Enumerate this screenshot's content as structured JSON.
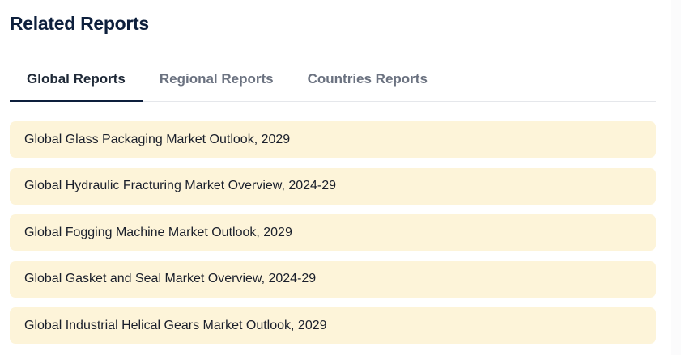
{
  "title": "Related Reports",
  "tabs": [
    {
      "label": "Global Reports",
      "active": true
    },
    {
      "label": "Regional Reports",
      "active": false
    },
    {
      "label": "Countries Reports",
      "active": false
    }
  ],
  "reports": [
    "Global Glass Packaging Market Outlook, 2029",
    "Global Hydraulic Fracturing Market Overview, 2024-29",
    "Global Fogging Machine Market Outlook, 2029",
    "Global Gasket and Seal Market Overview, 2024-29",
    "Global Industrial Helical Gears Market Outlook, 2029"
  ],
  "colors": {
    "card_bg": "#fdf4d9",
    "title": "#0d1f3c",
    "inactive_tab": "#6b7280"
  }
}
